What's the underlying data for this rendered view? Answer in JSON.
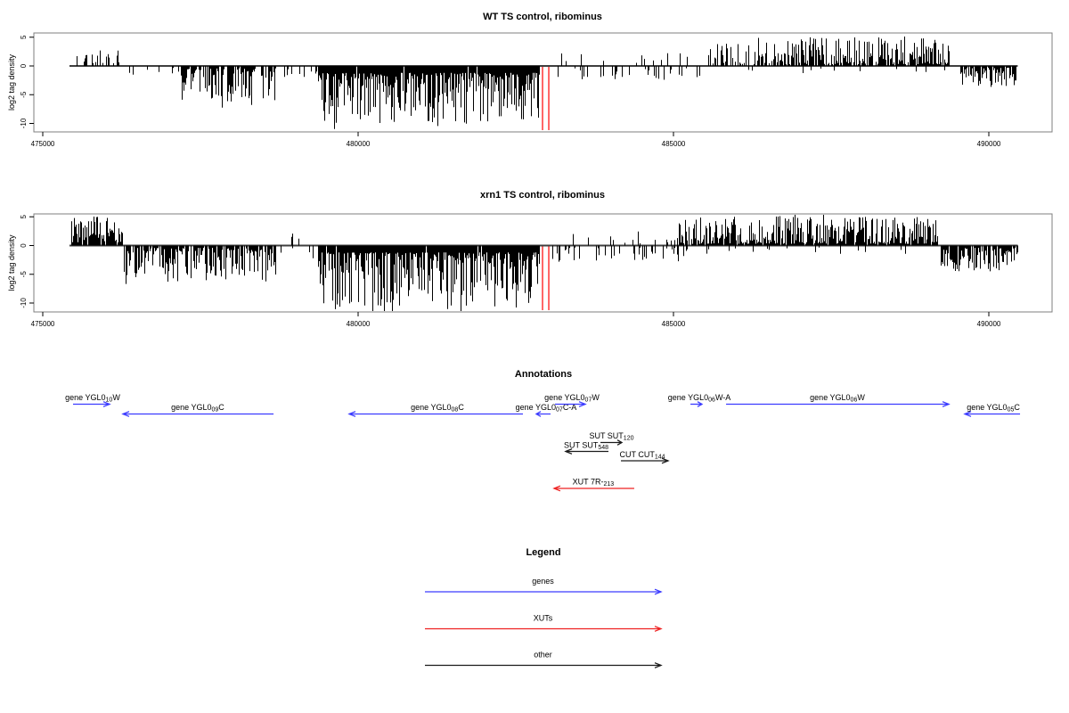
{
  "chart_data": [
    {
      "type": "bar",
      "title": "WT TS control, ribominus",
      "xlabel": "",
      "ylabel": "log2 tag density",
      "x_ticks": [
        475000,
        480000,
        485000,
        490000
      ],
      "y_ticks": [
        5,
        0,
        -5,
        -10
      ],
      "xlim": [
        474860,
        491000
      ],
      "ylim": [
        -11.5,
        5.7
      ],
      "grid": false,
      "bar_color": "#000000",
      "markers": {
        "color": "#ff0000",
        "positions": [
          482924,
          483023
        ]
      },
      "regions": [
        {
          "start": 475452,
          "end": 476229,
          "strand": "+",
          "density": 0.38,
          "amp_min": 0.4,
          "amp_max": 3.2,
          "skew": 1.2,
          "seed": 11
        },
        {
          "start": 476299,
          "end": 477147,
          "strand": "-",
          "density": 0.07,
          "amp_min": 0.3,
          "amp_max": 1.6,
          "skew": 1.0,
          "seed": 12
        },
        {
          "start": 477189,
          "end": 478701,
          "strand": "-",
          "density": 0.8,
          "amp_min": 0.4,
          "amp_max": 6.3,
          "skew": 1.5,
          "seed": 13,
          "spike_p": 0.03,
          "spike_amp": 7.6
        },
        {
          "start": 478729,
          "end": 479336,
          "strand": "-",
          "density": 0.14,
          "amp_min": 0.3,
          "amp_max": 2.0,
          "skew": 1.0,
          "seed": 14
        },
        {
          "start": 479364,
          "end": 482867,
          "strand": "-",
          "density": 0.98,
          "amp_min": 1.2,
          "amp_max": 10.2,
          "skew": 2.0,
          "seed": 15,
          "spike_p": 0.04,
          "spike_amp": 11.2
        },
        {
          "start": 483150,
          "end": 485481,
          "strand": "+",
          "density": 0.1,
          "amp_min": 0.3,
          "amp_max": 2.3,
          "skew": 1.0,
          "seed": 16
        },
        {
          "start": 483108,
          "end": 485481,
          "strand": "-",
          "density": 0.12,
          "amp_min": 0.3,
          "amp_max": 2.4,
          "skew": 1.0,
          "seed": 17
        },
        {
          "start": 485551,
          "end": 486330,
          "strand": "+",
          "density": 0.45,
          "amp_min": 0.3,
          "amp_max": 4.2,
          "skew": 1.8,
          "seed": 18
        },
        {
          "start": 486330,
          "end": 489365,
          "strand": "+",
          "density": 0.8,
          "amp_min": 0.3,
          "amp_max": 5.0,
          "skew": 1.8,
          "seed": 19,
          "spike_p": 0.02,
          "spike_amp": 5.6
        },
        {
          "start": 485551,
          "end": 489365,
          "strand": "-",
          "density": 0.05,
          "amp_min": 0.3,
          "amp_max": 1.3,
          "skew": 1.0,
          "seed": 20
        },
        {
          "start": 489548,
          "end": 490424,
          "strand": "-",
          "density": 0.8,
          "amp_min": 0.3,
          "amp_max": 3.8,
          "skew": 1.5,
          "seed": 21
        }
      ]
    },
    {
      "type": "bar",
      "title": "xrn1 TS control, ribominus",
      "xlabel": "",
      "ylabel": "log2 tag density",
      "x_ticks": [
        475000,
        480000,
        485000,
        490000
      ],
      "y_ticks": [
        5,
        0,
        -5,
        -10
      ],
      "xlim": [
        474860,
        491000
      ],
      "ylim": [
        -11.5,
        5.7
      ],
      "grid": false,
      "bar_color": "#000000",
      "markers": {
        "color": "#ff0000",
        "positions": [
          482924,
          483023
        ]
      },
      "regions": [
        {
          "start": 475452,
          "end": 476257,
          "strand": "+",
          "density": 0.9,
          "amp_min": 0.5,
          "amp_max": 5.2,
          "skew": 1.3,
          "seed": 31
        },
        {
          "start": 476285,
          "end": 478701,
          "strand": "-",
          "density": 0.82,
          "amp_min": 0.4,
          "amp_max": 6.3,
          "skew": 1.5,
          "seed": 32,
          "spike_p": 0.02,
          "spike_amp": 7.5
        },
        {
          "start": 478729,
          "end": 479336,
          "strand": "-",
          "density": 0.16,
          "amp_min": 0.3,
          "amp_max": 2.4,
          "skew": 1.0,
          "seed": 33
        },
        {
          "start": 478912,
          "end": 479053,
          "strand": "+",
          "density": 0.18,
          "amp_min": 1.0,
          "amp_max": 2.4,
          "skew": 1.0,
          "seed": 34
        },
        {
          "start": 479364,
          "end": 482867,
          "strand": "-",
          "density": 0.98,
          "amp_min": 1.2,
          "amp_max": 11.0,
          "skew": 2.0,
          "seed": 35,
          "spike_p": 0.04,
          "spike_amp": 12.2
        },
        {
          "start": 483030,
          "end": 485481,
          "strand": "-",
          "density": 0.22,
          "amp_min": 0.3,
          "amp_max": 3.0,
          "skew": 1.4,
          "seed": 36
        },
        {
          "start": 483369,
          "end": 485481,
          "strand": "+",
          "density": 0.12,
          "amp_min": 0.3,
          "amp_max": 2.6,
          "skew": 1.0,
          "seed": 37
        },
        {
          "start": 485091,
          "end": 489181,
          "strand": "+",
          "density": 0.92,
          "amp_min": 0.3,
          "amp_max": 5.0,
          "skew": 1.7,
          "seed": 38,
          "spike_p": 0.02,
          "spike_amp": 5.7
        },
        {
          "start": 485481,
          "end": 489153,
          "strand": "-",
          "density": 0.06,
          "amp_min": 0.3,
          "amp_max": 1.6,
          "skew": 1.0,
          "seed": 39
        },
        {
          "start": 489244,
          "end": 490466,
          "strand": "-",
          "density": 0.85,
          "amp_min": 0.4,
          "amp_max": 4.5,
          "skew": 1.4,
          "seed": 40
        }
      ]
    }
  ],
  "annotations": {
    "title": "Annotations",
    "items": [
      {
        "id": "gene-YGL010W",
        "kind": "gene",
        "label": {
          "pre": "gene YGL0",
          "sub": "10",
          "post": "W"
        },
        "from": 475480,
        "to": 476059,
        "lane": "gene_w",
        "text_center": 475791
      },
      {
        "id": "gene-YGL009C",
        "kind": "gene",
        "label": {
          "pre": "gene YGL0",
          "sub": "09",
          "post": "C"
        },
        "from": 478659,
        "to": 476271,
        "lane": "gene_c",
        "text_center": 477457
      },
      {
        "id": "gene-YGL008C",
        "kind": "gene",
        "label": {
          "pre": "gene YGL0",
          "sub": "08",
          "post": "C"
        },
        "from": 482613,
        "to": 479859,
        "lane": "gene_c",
        "text_center": 481257
      },
      {
        "id": "gene-YGL007C-A",
        "kind": "gene",
        "label": {
          "pre": "gene YGL0",
          "sub": "07",
          "post": "C-A"
        },
        "from": 483051,
        "to": 482825,
        "lane": "gene_c",
        "text_center": 482980
      },
      {
        "id": "gene-YGL007W",
        "kind": "gene",
        "label": {
          "pre": "gene YGL0",
          "sub": "07",
          "post": "W"
        },
        "from": 483122,
        "to": 483602,
        "lane": "gene_w",
        "text_center": 483390
      },
      {
        "id": "gene-YGL006W-A",
        "kind": "gene",
        "label": {
          "pre": "gene YGL0",
          "sub": "06",
          "post": "W-A"
        },
        "from": 485269,
        "to": 485452,
        "lane": "gene_w",
        "text_center": 485410
      },
      {
        "id": "gene-YGL006W",
        "kind": "gene",
        "label": {
          "pre": "gene YGL0",
          "sub": "06",
          "post": "W"
        },
        "from": 485834,
        "to": 489365,
        "lane": "gene_w",
        "text_center": 487599
      },
      {
        "id": "gene-YGL005C",
        "kind": "gene",
        "label": {
          "pre": "gene YGL0",
          "sub": "05",
          "post": "C"
        },
        "from": 490495,
        "to": 489619,
        "lane": "gene_c",
        "text_center": 490071
      },
      {
        "id": "SUT-SUT120",
        "kind": "other",
        "label": {
          "pre": "SUT SUT",
          "sub": "120",
          "post": ""
        },
        "from": 483842,
        "to": 484181,
        "lane": "sut1",
        "text_center": 484018
      },
      {
        "id": "SUT-SUT548",
        "kind": "other",
        "label": {
          "pre": "SUT SUT",
          "sub": "548",
          "post": ""
        },
        "from": 483969,
        "to": 483291,
        "lane": "sut2",
        "text_center": 483616
      },
      {
        "id": "CUT-CUT144",
        "kind": "other",
        "label": {
          "pre": "CUT CUT",
          "sub": "144",
          "post": ""
        },
        "from": 484167,
        "to": 484915,
        "lane": "cut",
        "text_center": 484506
      },
      {
        "id": "XUT-7R-213",
        "kind": "xut",
        "label": {
          "pre": "XUT 7R-",
          "sub": "213",
          "post": ""
        },
        "from": 484378,
        "to": 483107,
        "lane": "xut",
        "text_center": 483728
      }
    ]
  },
  "legend": {
    "title": "Legend",
    "items": [
      {
        "label": "genes",
        "kind": "gene"
      },
      {
        "label": "XUTs",
        "kind": "xut"
      },
      {
        "label": "other",
        "kind": "other"
      }
    ]
  },
  "colors": {
    "gene_text": "#0000e6",
    "gene_arrow": "#3b3bff",
    "xut_text": "#ee2222",
    "xut_arrow": "#ee2222",
    "other_text": "#111111",
    "other_arrow": "#1a1a1a",
    "marker": "#ff0000",
    "bars": "#000000",
    "frame": "#7f7f7f",
    "zero_line": "#3f3f3f"
  }
}
